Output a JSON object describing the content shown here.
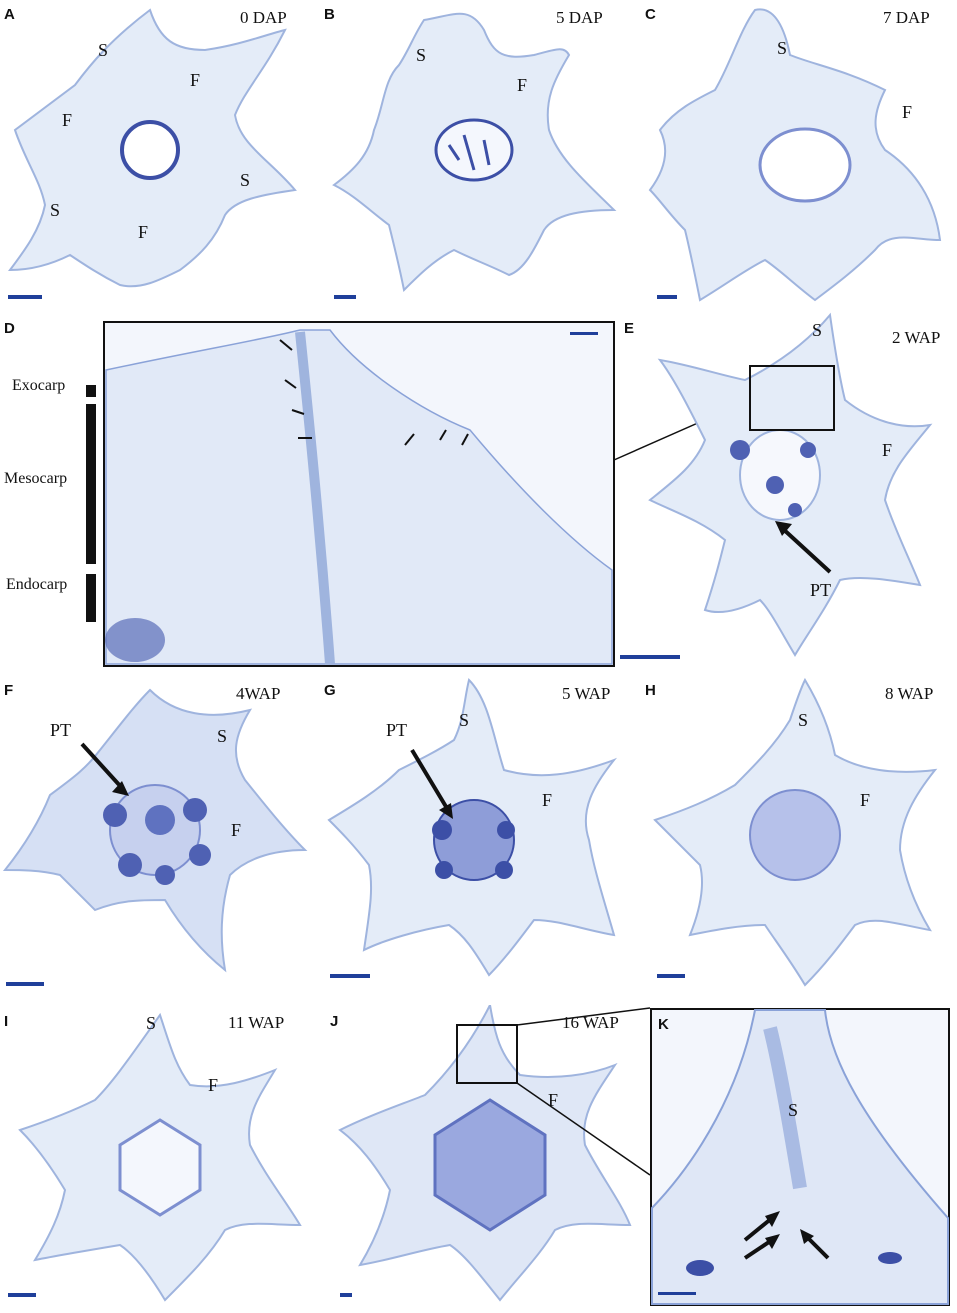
{
  "colors": {
    "tissue_fill": "#e4ecf8",
    "cell_line": "#9fb4de",
    "stain_dark": "#3c4fa6",
    "scale_bar": "#1f3f9a"
  },
  "panels": {
    "A": {
      "letter": "A",
      "stage": "0 DAP",
      "labels": [
        "S",
        "F",
        "F",
        "S",
        "S",
        "F"
      ]
    },
    "B": {
      "letter": "B",
      "stage": "5 DAP",
      "labels": [
        "S",
        "F"
      ]
    },
    "C": {
      "letter": "C",
      "stage": "7 DAP",
      "labels": [
        "S",
        "F"
      ]
    },
    "D": {
      "letter": "D",
      "layers": [
        "Exocarp",
        "Mesocarp",
        "Endocarp"
      ]
    },
    "E": {
      "letter": "E",
      "stage": "2 WAP",
      "labels": [
        "S",
        "F",
        "PT"
      ]
    },
    "F": {
      "letter": "F",
      "stage": "4WAP",
      "labels": [
        "PT",
        "S",
        "F"
      ]
    },
    "G": {
      "letter": "G",
      "stage": "5 WAP",
      "labels": [
        "S",
        "PT",
        "F"
      ]
    },
    "H": {
      "letter": "H",
      "stage": "8 WAP",
      "labels": [
        "S",
        "F"
      ]
    },
    "I": {
      "letter": "I",
      "stage": "11 WAP",
      "labels": [
        "S",
        "F"
      ]
    },
    "J": {
      "letter": "J",
      "stage": "16 WAP",
      "labels": [
        "F"
      ]
    },
    "K": {
      "letter": "K",
      "labels": [
        "S"
      ]
    }
  }
}
